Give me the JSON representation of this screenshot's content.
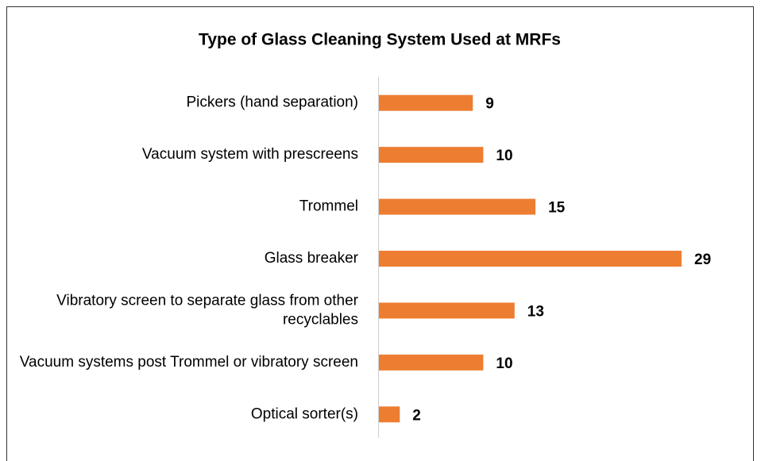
{
  "chart_data": {
    "type": "bar",
    "orientation": "horizontal",
    "title": "Type of Glass Cleaning System Used at MRFs",
    "categories": [
      "Pickers (hand separation)",
      "Vacuum system with prescreens",
      "Trommel",
      "Glass breaker",
      "Vibratory screen to separate glass from other recyclables",
      "Vacuum systems post Trommel or vibratory screen",
      "Optical sorter(s)"
    ],
    "values": [
      9,
      10,
      15,
      29,
      13,
      10,
      2
    ],
    "color": "#ed7d31"
  }
}
